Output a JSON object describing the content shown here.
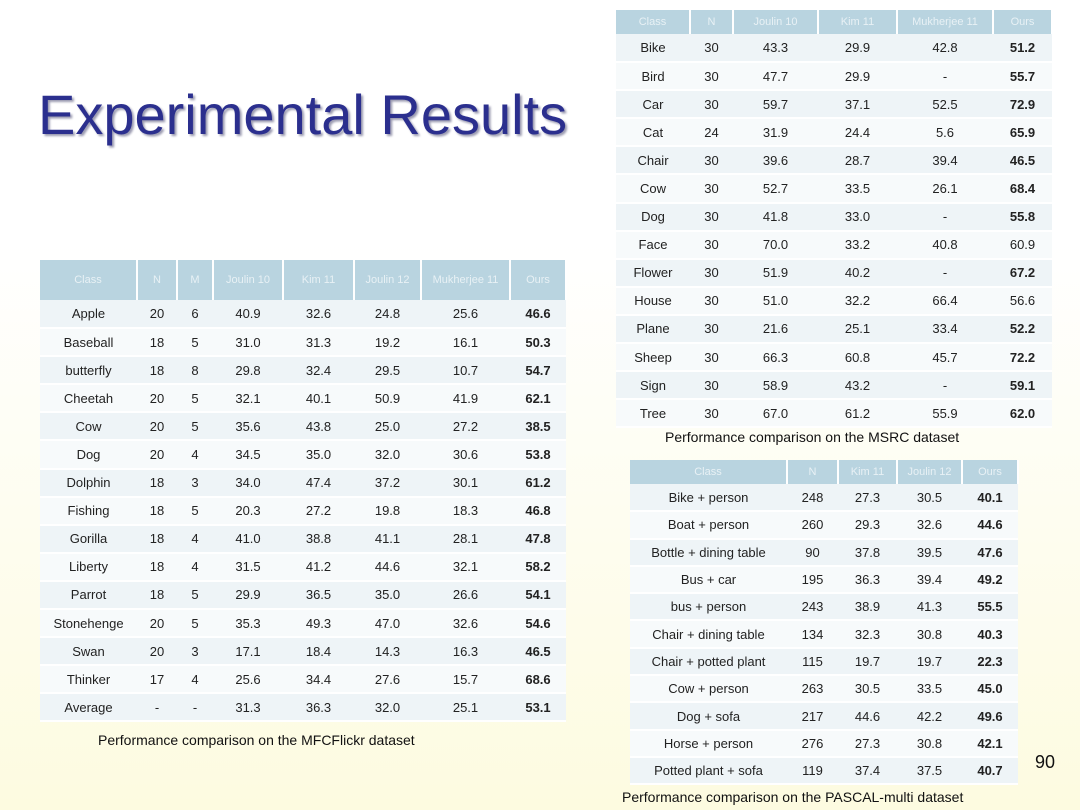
{
  "title": "Experimental Results",
  "page_number": "90",
  "tables": [
    {
      "caption": "Performance comparison on the MFCFlickr dataset",
      "header": [
        "Class",
        "N",
        "M",
        "Joulin 10",
        "Kim 11",
        "Joulin 12",
        "Mukherjee 11",
        "Ours"
      ],
      "rows": [
        [
          "Apple",
          "20",
          "6",
          "40.9",
          "32.6",
          "24.8",
          "25.6",
          "46.6"
        ],
        [
          "Baseball",
          "18",
          "5",
          "31.0",
          "31.3",
          "19.2",
          "16.1",
          "50.3"
        ],
        [
          "butterfly",
          "18",
          "8",
          "29.8",
          "32.4",
          "29.5",
          "10.7",
          "54.7"
        ],
        [
          "Cheetah",
          "20",
          "5",
          "32.1",
          "40.1",
          "50.9",
          "41.9",
          "62.1"
        ],
        [
          "Cow",
          "20",
          "5",
          "35.6",
          "43.8",
          "25.0",
          "27.2",
          "38.5"
        ],
        [
          "Dog",
          "20",
          "4",
          "34.5",
          "35.0",
          "32.0",
          "30.6",
          "53.8"
        ],
        [
          "Dolphin",
          "18",
          "3",
          "34.0",
          "47.4",
          "37.2",
          "30.1",
          "61.2"
        ],
        [
          "Fishing",
          "18",
          "5",
          "20.3",
          "27.2",
          "19.8",
          "18.3",
          "46.8"
        ],
        [
          "Gorilla",
          "18",
          "4",
          "41.0",
          "38.8",
          "41.1",
          "28.1",
          "47.8"
        ],
        [
          "Liberty",
          "18",
          "4",
          "31.5",
          "41.2",
          "44.6",
          "32.1",
          "58.2"
        ],
        [
          "Parrot",
          "18",
          "5",
          "29.9",
          "36.5",
          "35.0",
          "26.6",
          "54.1"
        ],
        [
          "Stonehenge",
          "20",
          "5",
          "35.3",
          "49.3",
          "47.0",
          "32.6",
          "54.6"
        ],
        [
          "Swan",
          "20",
          "3",
          "17.1",
          "18.4",
          "14.3",
          "16.3",
          "46.5"
        ],
        [
          "Thinker",
          "17",
          "4",
          "25.6",
          "34.4",
          "27.6",
          "15.7",
          "68.6"
        ],
        [
          "Average",
          "-",
          "-",
          "31.3",
          "36.3",
          "32.0",
          "25.1",
          "53.1"
        ]
      ],
      "bold_last": [
        true,
        true,
        true,
        true,
        true,
        true,
        true,
        true,
        true,
        true,
        true,
        true,
        true,
        true,
        true
      ]
    },
    {
      "caption": "Performance comparison on the MSRC dataset",
      "header": [
        "Class",
        "N",
        "Joulin 10",
        "Kim 11",
        "Mukherjee 11",
        "Ours"
      ],
      "rows": [
        [
          "Bike",
          "30",
          "43.3",
          "29.9",
          "42.8",
          "51.2"
        ],
        [
          "Bird",
          "30",
          "47.7",
          "29.9",
          "-",
          "55.7"
        ],
        [
          "Car",
          "30",
          "59.7",
          "37.1",
          "52.5",
          "72.9"
        ],
        [
          "Cat",
          "24",
          "31.9",
          "24.4",
          "5.6",
          "65.9"
        ],
        [
          "Chair",
          "30",
          "39.6",
          "28.7",
          "39.4",
          "46.5"
        ],
        [
          "Cow",
          "30",
          "52.7",
          "33.5",
          "26.1",
          "68.4"
        ],
        [
          "Dog",
          "30",
          "41.8",
          "33.0",
          "-",
          "55.8"
        ],
        [
          "Face",
          "30",
          "70.0",
          "33.2",
          "40.8",
          "60.9"
        ],
        [
          "Flower",
          "30",
          "51.9",
          "40.2",
          "-",
          "67.2"
        ],
        [
          "House",
          "30",
          "51.0",
          "32.2",
          "66.4",
          "56.6"
        ],
        [
          "Plane",
          "30",
          "21.6",
          "25.1",
          "33.4",
          "52.2"
        ],
        [
          "Sheep",
          "30",
          "66.3",
          "60.8",
          "45.7",
          "72.2"
        ],
        [
          "Sign",
          "30",
          "58.9",
          "43.2",
          "-",
          "59.1"
        ],
        [
          "Tree",
          "30",
          "67.0",
          "61.2",
          "55.9",
          "62.0"
        ]
      ],
      "bold_last": [
        true,
        true,
        true,
        true,
        true,
        true,
        true,
        false,
        true,
        false,
        true,
        true,
        true,
        true
      ]
    },
    {
      "caption": "Performance comparison on the PASCAL-multi dataset",
      "header": [
        "Class",
        "N",
        "Kim 11",
        "Joulin 12",
        "Ours"
      ],
      "rows": [
        [
          "Bike + person",
          "248",
          "27.3",
          "30.5",
          "40.1"
        ],
        [
          "Boat + person",
          "260",
          "29.3",
          "32.6",
          "44.6"
        ],
        [
          "Bottle + dining table",
          "90",
          "37.8",
          "39.5",
          "47.6"
        ],
        [
          "Bus + car",
          "195",
          "36.3",
          "39.4",
          "49.2"
        ],
        [
          "bus + person",
          "243",
          "38.9",
          "41.3",
          "55.5"
        ],
        [
          "Chair + dining table",
          "134",
          "32.3",
          "30.8",
          "40.3"
        ],
        [
          "Chair + potted plant",
          "115",
          "19.7",
          "19.7",
          "22.3"
        ],
        [
          "Cow + person",
          "263",
          "30.5",
          "33.5",
          "45.0"
        ],
        [
          "Dog + sofa",
          "217",
          "44.6",
          "42.2",
          "49.6"
        ],
        [
          "Horse + person",
          "276",
          "27.3",
          "30.8",
          "42.1"
        ],
        [
          "Potted plant + sofa",
          "119",
          "37.4",
          "37.5",
          "40.7"
        ]
      ],
      "bold_last": [
        true,
        true,
        true,
        true,
        true,
        true,
        true,
        true,
        true,
        true,
        true
      ]
    }
  ]
}
